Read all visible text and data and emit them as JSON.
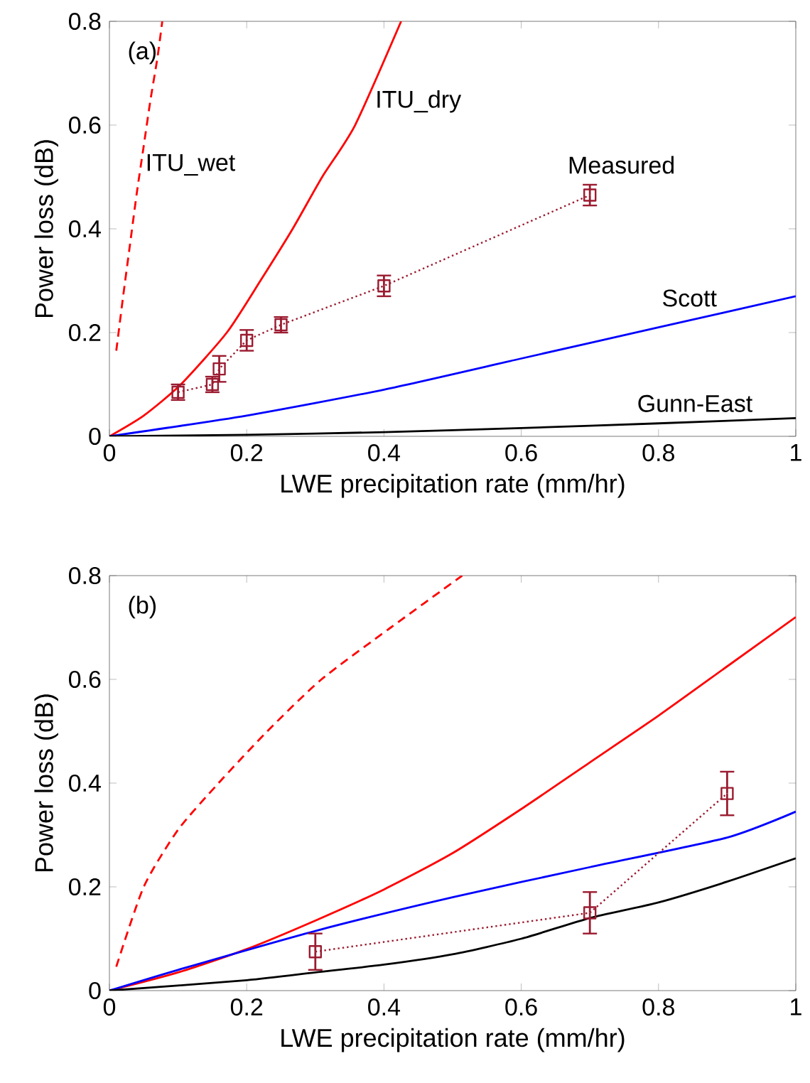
{
  "chart_data": [
    {
      "type": "line",
      "title": "(a)",
      "xlabel": "LWE precipitation rate (mm/hr)",
      "ylabel": "Power loss (dB)",
      "xlim": [
        0,
        1
      ],
      "ylim": [
        0,
        0.8
      ],
      "xticks": [
        0,
        0.2,
        0.4,
        0.6,
        0.8,
        1
      ],
      "yticks": [
        0,
        0.2,
        0.4,
        0.6,
        0.8
      ],
      "series": [
        {
          "name": "ITU_wet",
          "color": "#ff0000",
          "line_style": "dashed",
          "x": [
            0.01,
            0.02,
            0.03,
            0.04,
            0.05,
            0.06,
            0.07,
            0.077
          ],
          "values": [
            0.165,
            0.27,
            0.37,
            0.47,
            0.56,
            0.65,
            0.73,
            0.8
          ]
        },
        {
          "name": "ITU_dry",
          "color": "#ff0000",
          "line_style": "solid",
          "x": [
            0,
            0.05,
            0.104,
            0.171,
            0.22,
            0.267,
            0.31,
            0.358,
            0.425
          ],
          "values": [
            0,
            0.04,
            0.1,
            0.2,
            0.3,
            0.4,
            0.5,
            0.6,
            0.8
          ]
        },
        {
          "name": "Scott",
          "color": "#0000ff",
          "line_style": "solid",
          "x": [
            0,
            0.2,
            0.4,
            0.6,
            0.8,
            1
          ],
          "values": [
            0,
            0.04,
            0.09,
            0.15,
            0.21,
            0.27
          ]
        },
        {
          "name": "Gunn-East",
          "color": "#000000",
          "line_style": "solid",
          "x": [
            0,
            0.2,
            0.4,
            0.6,
            0.8,
            1
          ],
          "values": [
            0,
            0.003,
            0.008,
            0.016,
            0.025,
            0.035
          ]
        },
        {
          "name": "Measured",
          "color": "#9b1b30",
          "line_style": "dotted",
          "marker": "square",
          "x": [
            0.1,
            0.15,
            0.16,
            0.2,
            0.25,
            0.4,
            0.7
          ],
          "values": [
            0.085,
            0.1,
            0.13,
            0.185,
            0.215,
            0.29,
            0.465
          ],
          "errors": [
            0.015,
            0.015,
            0.025,
            0.02,
            0.015,
            0.02,
            0.02
          ]
        }
      ]
    },
    {
      "type": "line",
      "title": "(b)",
      "xlabel": "LWE precipitation rate (mm/hr)",
      "ylabel": "Power loss (dB)",
      "xlim": [
        0,
        1
      ],
      "ylim": [
        0,
        0.8
      ],
      "xticks": [
        0,
        0.2,
        0.4,
        0.6,
        0.8,
        1
      ],
      "yticks": [
        0,
        0.2,
        0.4,
        0.6,
        0.8
      ],
      "series": [
        {
          "color": "#ff0000",
          "line_style": "dashed",
          "x": [
            0.01,
            0.05,
            0.1,
            0.159,
            0.23,
            0.309,
            0.41,
            0.514
          ],
          "values": [
            0.046,
            0.2,
            0.31,
            0.4,
            0.5,
            0.6,
            0.7,
            0.8
          ]
        },
        {
          "color": "#ff0000",
          "line_style": "solid",
          "x": [
            0,
            0.1,
            0.2,
            0.3,
            0.4,
            0.5,
            0.6,
            0.7,
            0.8,
            0.9,
            1
          ],
          "values": [
            0,
            0.035,
            0.08,
            0.135,
            0.195,
            0.265,
            0.35,
            0.44,
            0.53,
            0.625,
            0.72
          ]
        },
        {
          "color": "#0000ff",
          "line_style": "solid",
          "x": [
            0,
            0.1,
            0.3,
            0.5,
            0.7,
            0.9,
            1
          ],
          "values": [
            0,
            0.04,
            0.115,
            0.18,
            0.238,
            0.295,
            0.345
          ]
        },
        {
          "color": "#000000",
          "line_style": "solid",
          "x": [
            0,
            0.2,
            0.3,
            0.4,
            0.5,
            0.6,
            0.7,
            0.8,
            0.9,
            1
          ],
          "values": [
            0,
            0.02,
            0.035,
            0.05,
            0.07,
            0.1,
            0.14,
            0.17,
            0.21,
            0.255
          ]
        },
        {
          "color": "#9b1b30",
          "line_style": "dotted",
          "marker": "square",
          "x": [
            0.3,
            0.7,
            0.9
          ],
          "values": [
            0.075,
            0.15,
            0.38
          ],
          "errors": [
            0.035,
            0.04,
            0.042
          ]
        }
      ]
    }
  ]
}
